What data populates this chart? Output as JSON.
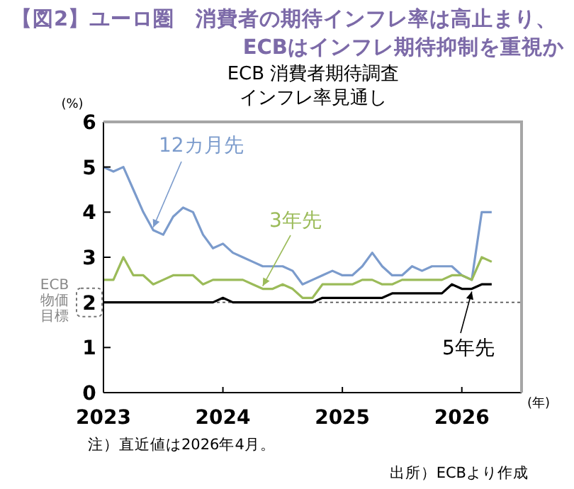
{
  "chart_data": {
    "type": "line",
    "title": "【図2】ユーロ圏　消費者の期待インフレ率は高止まり、\nECBはインフレ期待抑制を重視か",
    "subtitle": "ECB 消費者期待調査インフレ率見通し",
    "ylabel": "(%)",
    "xlabel": "(年)",
    "x": [
      "2023-01",
      "2023-02",
      "2023-03",
      "2023-04",
      "2023-05",
      "2023-06",
      "2023-07",
      "2023-08",
      "2023-09",
      "2023-10",
      "2023-11",
      "2023-12",
      "2024-01",
      "2024-02",
      "2024-03",
      "2024-04",
      "2024-05",
      "2024-06",
      "2024-07",
      "2024-08",
      "2024-09",
      "2024-10",
      "2024-11",
      "2024-12",
      "2025-01",
      "2025-02",
      "2025-03",
      "2025-04",
      "2025-05",
      "2025-06",
      "2025-07",
      "2025-08",
      "2025-09",
      "2025-10",
      "2025-11",
      "2025-12",
      "2026-01",
      "2026-02",
      "2026-03",
      "2026-04"
    ],
    "series": [
      {
        "name": "12カ月先",
        "color": "#7b9bcc",
        "values": [
          5.0,
          4.9,
          5.0,
          4.5,
          4.0,
          3.6,
          3.5,
          3.9,
          4.1,
          4.0,
          3.5,
          3.2,
          3.3,
          3.1,
          3.0,
          2.9,
          2.8,
          2.8,
          2.8,
          2.7,
          2.4,
          2.5,
          2.6,
          2.7,
          2.6,
          2.6,
          2.8,
          3.1,
          2.8,
          2.6,
          2.6,
          2.8,
          2.7,
          2.8,
          2.8,
          2.8,
          2.6,
          2.5,
          4.0,
          4.0
        ]
      },
      {
        "name": "3年先",
        "color": "#9bbb59",
        "values": [
          2.5,
          2.5,
          3.0,
          2.6,
          2.6,
          2.4,
          2.5,
          2.6,
          2.6,
          2.6,
          2.4,
          2.5,
          2.5,
          2.5,
          2.5,
          2.4,
          2.3,
          2.3,
          2.4,
          2.3,
          2.1,
          2.1,
          2.4,
          2.4,
          2.4,
          2.4,
          2.5,
          2.5,
          2.4,
          2.4,
          2.5,
          2.5,
          2.5,
          2.5,
          2.5,
          2.6,
          2.6,
          2.5,
          3.0,
          2.9
        ]
      },
      {
        "name": "5年先",
        "color": "#000000",
        "values": [
          2.0,
          2.0,
          2.0,
          2.0,
          2.0,
          2.0,
          2.0,
          2.0,
          2.0,
          2.0,
          2.0,
          2.0,
          2.1,
          2.0,
          2.0,
          2.0,
          2.0,
          2.0,
          2.0,
          2.0,
          2.0,
          2.0,
          2.1,
          2.1,
          2.1,
          2.1,
          2.1,
          2.1,
          2.1,
          2.2,
          2.2,
          2.2,
          2.2,
          2.2,
          2.2,
          2.4,
          2.3,
          2.3,
          2.4,
          2.4
        ]
      }
    ],
    "xlim": [
      "2023-01",
      "2026-07"
    ],
    "xticks": [
      "2023",
      "2024",
      "2025",
      "2026"
    ],
    "ylim": [
      0,
      6
    ],
    "yticks": [
      0,
      1,
      2,
      3,
      4,
      5,
      6
    ],
    "ref_lines": [
      {
        "axis": "y",
        "value": 2,
        "label": "ECB物価目標",
        "color": "#555555",
        "line_style": "dotted"
      }
    ],
    "grid": false,
    "legend": false,
    "marker": "none",
    "line_style": "solid",
    "annotations": [
      "注）直近値は2026年4月。",
      "出所）ECBより作成"
    ]
  }
}
